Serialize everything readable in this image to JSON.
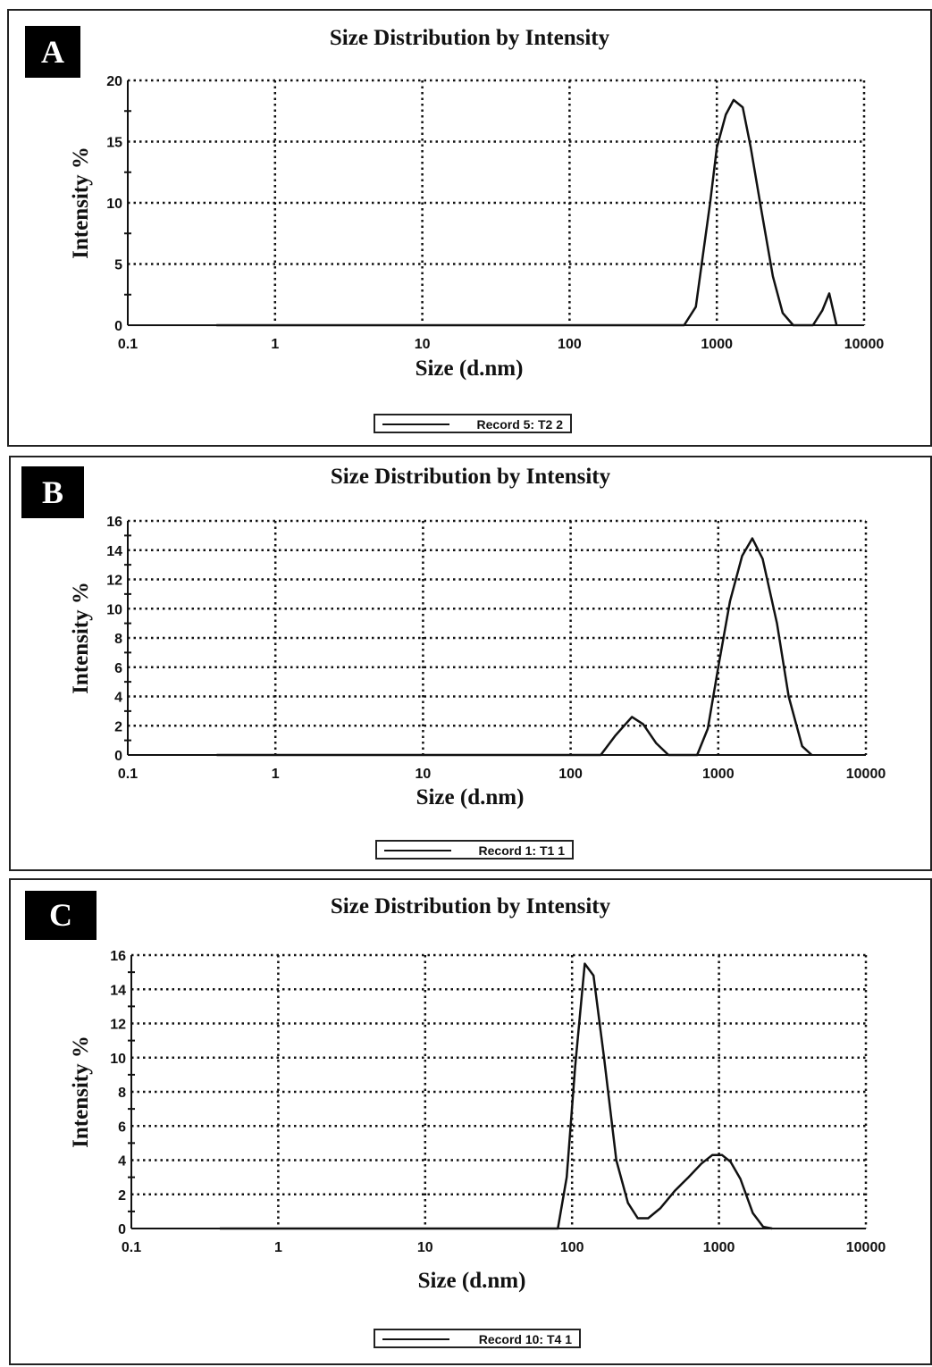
{
  "chart_data": [
    {
      "type": "line",
      "panel_label": "A",
      "title": "Size Distribution by Intensity",
      "xlabel": "Size (d.nm)",
      "ylabel": "Intensity %",
      "xscale": "log",
      "xlim": [
        0.1,
        10000
      ],
      "ylim": [
        0,
        20
      ],
      "xticks": [
        0.1,
        1,
        10,
        100,
        1000,
        10000
      ],
      "xtick_labels": [
        "0.1",
        "1",
        "10",
        "100",
        "1000",
        "10000"
      ],
      "yticks": [
        0,
        5,
        10,
        15,
        20
      ],
      "ytick_labels": [
        "0",
        "5",
        "10",
        "15",
        "20"
      ],
      "grid": true,
      "legend": "bottom-center",
      "series": [
        {
          "name": "Record 5: T2 2",
          "x": [
            0.4,
            600,
            720,
            800,
            900,
            1000,
            1150,
            1300,
            1500,
            1700,
            2000,
            2400,
            2800,
            3300,
            4500,
            5200,
            5800,
            6500
          ],
          "y": [
            0,
            0,
            1.5,
            5.5,
            10,
            14.5,
            17.2,
            18.4,
            17.8,
            14.5,
            9.5,
            4.0,
            1.0,
            0,
            0,
            1.2,
            2.6,
            0
          ]
        }
      ]
    },
    {
      "type": "line",
      "panel_label": "B",
      "title": "Size Distribution by Intensity",
      "xlabel": "Size (d.nm)",
      "ylabel": "Intensity %",
      "xscale": "log",
      "xlim": [
        0.1,
        10000
      ],
      "ylim": [
        0,
        16
      ],
      "xticks": [
        0.1,
        1,
        10,
        100,
        1000,
        10000
      ],
      "xtick_labels": [
        "0.1",
        "1",
        "10",
        "100",
        "1000",
        "10000"
      ],
      "yticks": [
        0,
        2,
        4,
        6,
        8,
        10,
        12,
        14,
        16
      ],
      "ytick_labels": [
        "0",
        "2",
        "4",
        "6",
        "8",
        "10",
        "12",
        "14",
        "16"
      ],
      "grid": true,
      "legend": "bottom-center",
      "series": [
        {
          "name": "Record 1: T1 1",
          "x": [
            0.4,
            160,
            200,
            260,
            310,
            380,
            460,
            720,
            850,
            1000,
            1200,
            1450,
            1700,
            2000,
            2500,
            3000,
            3700,
            4300
          ],
          "y": [
            0,
            0,
            1.3,
            2.6,
            2.1,
            0.8,
            0,
            0,
            1.8,
            6.0,
            10.5,
            13.6,
            14.8,
            13.4,
            9.0,
            4.0,
            0.6,
            0
          ]
        }
      ]
    },
    {
      "type": "line",
      "panel_label": "C",
      "title": "Size Distribution by Intensity",
      "xlabel": "Size (d.nm)",
      "ylabel": "Intensity %",
      "xscale": "log",
      "xlim": [
        0.1,
        10000
      ],
      "ylim": [
        0,
        16
      ],
      "xticks": [
        0.1,
        1,
        10,
        100,
        1000,
        10000
      ],
      "xtick_labels": [
        "0.1",
        "1",
        "10",
        "100",
        "1000",
        "10000"
      ],
      "yticks": [
        0,
        2,
        4,
        6,
        8,
        10,
        12,
        14,
        16
      ],
      "ytick_labels": [
        "0",
        "2",
        "4",
        "6",
        "8",
        "10",
        "12",
        "14",
        "16"
      ],
      "grid": true,
      "legend": "bottom-center",
      "series": [
        {
          "name": "Record 10: T4 1",
          "x": [
            0.4,
            80,
            92,
            105,
            122,
            140,
            165,
            200,
            240,
            280,
            330,
            400,
            500,
            620,
            760,
            900,
            1050,
            1200,
            1400,
            1700,
            2000,
            2300
          ],
          "y": [
            0,
            0,
            3.0,
            9.5,
            15.5,
            14.8,
            10.0,
            4.0,
            1.5,
            0.6,
            0.6,
            1.2,
            2.2,
            3.0,
            3.8,
            4.3,
            4.3,
            3.9,
            2.9,
            0.9,
            0.1,
            0
          ]
        }
      ]
    }
  ]
}
